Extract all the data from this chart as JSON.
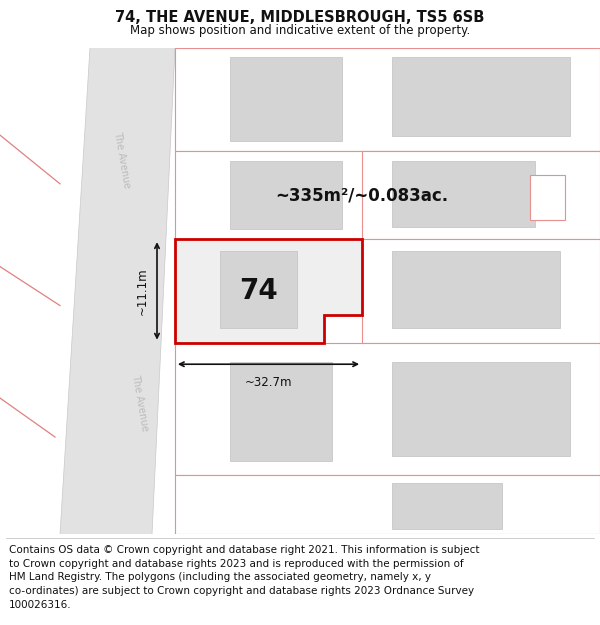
{
  "title": "74, THE AVENUE, MIDDLESBROUGH, TS5 6SB",
  "subtitle": "Map shows position and indicative extent of the property.",
  "footer": "Contains OS data © Crown copyright and database right 2021. This information is subject\nto Crown copyright and database rights 2023 and is reproduced with the permission of\nHM Land Registry. The polygons (including the associated geometry, namely x, y\nco-ordinates) are subject to Crown copyright and database rights 2023 Ordnance Survey\n100026316.",
  "area_label": "~335m²/~0.083ac.",
  "width_label": "~32.7m",
  "height_label": "~11.1m",
  "number_label": "74",
  "plot_edge_main": "#cc0000",
  "road_fill": "#e2e2e2",
  "road_edge": "#c8c8c8",
  "road_label_color": "#bbbbbb",
  "dim_color": "#1a1a1a",
  "other_plot_edge": "#e89090",
  "building_fill": "#d4d4d4",
  "building_edge": "#c0c0c0",
  "left_road_fill": "#e0e0e0",
  "title_fontsize": 10.5,
  "subtitle_fontsize": 8.5,
  "footer_fontsize": 7.5,
  "area_fontsize": 12,
  "num_fontsize": 20,
  "dim_fontsize": 8.5
}
